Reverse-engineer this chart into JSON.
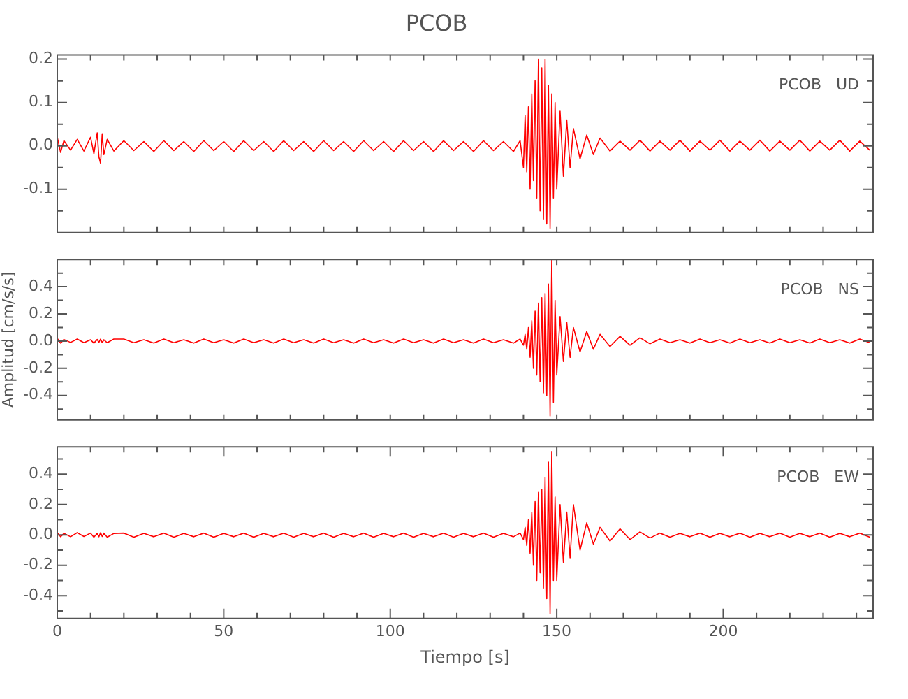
{
  "chart_data": [
    {
      "type": "line",
      "title": "PCOB",
      "annotations": [
        "PCOB   UD"
      ],
      "tick_labels": "y",
      "x": [
        0,
        1,
        2,
        4,
        6,
        8,
        10,
        11,
        12,
        12.5,
        13,
        13.5,
        14,
        15,
        17,
        20,
        23,
        26,
        29,
        32,
        35,
        38,
        41,
        44,
        47,
        50,
        53,
        56,
        59,
        62,
        65,
        68,
        71,
        74,
        77,
        80,
        83,
        86,
        89,
        92,
        95,
        98,
        101,
        104,
        107,
        110,
        113,
        116,
        119,
        122,
        125,
        128,
        131,
        134,
        137,
        139,
        140,
        140.5,
        141,
        141.5,
        142,
        142.5,
        143,
        143.5,
        144,
        144.5,
        145,
        145.5,
        146,
        146.5,
        147,
        147.5,
        148,
        148.5,
        149,
        149.5,
        150,
        151,
        152,
        153,
        154,
        155,
        157,
        159,
        161,
        163,
        166,
        169,
        172,
        175,
        178,
        181,
        184,
        187,
        190,
        193,
        196,
        199,
        202,
        205,
        208,
        211,
        214,
        217,
        220,
        223,
        226,
        229,
        232,
        235,
        238,
        241,
        244
      ],
      "series": [
        {
          "color": "#ff0000",
          "values": [
            0.02,
            -0.015,
            0.012,
            -0.01,
            0.015,
            -0.012,
            0.02,
            -0.018,
            0.03,
            -0.025,
            -0.04,
            0.028,
            -0.02,
            0.015,
            -0.012,
            0.012,
            -0.011,
            0.01,
            -0.013,
            0.012,
            -0.011,
            0.01,
            -0.013,
            0.012,
            -0.011,
            0.01,
            -0.013,
            0.012,
            -0.011,
            0.01,
            -0.013,
            0.012,
            -0.011,
            0.01,
            -0.013,
            0.012,
            -0.011,
            0.01,
            -0.013,
            0.012,
            -0.011,
            0.01,
            -0.013,
            0.012,
            -0.011,
            0.01,
            -0.013,
            0.012,
            -0.011,
            0.01,
            -0.013,
            0.012,
            -0.011,
            0.01,
            -0.013,
            0.012,
            -0.05,
            0.07,
            -0.06,
            0.09,
            -0.1,
            0.12,
            -0.08,
            0.15,
            -0.12,
            0.2,
            -0.15,
            0.18,
            -0.17,
            0.2,
            -0.18,
            0.14,
            -0.19,
            0.12,
            -0.12,
            0.1,
            -0.1,
            0.08,
            -0.07,
            0.06,
            -0.05,
            0.04,
            -0.03,
            0.025,
            -0.02,
            0.018,
            -0.012,
            0.011,
            -0.01,
            0.013,
            -0.012,
            0.011,
            -0.01,
            0.013,
            -0.012,
            0.011,
            -0.01,
            0.013,
            -0.012,
            0.011,
            -0.01,
            0.013,
            -0.012,
            0.011,
            -0.01,
            0.013,
            -0.012,
            0.011,
            -0.01,
            0.013,
            -0.012,
            0.011,
            -0.01
          ]
        }
      ],
      "xlim": [
        0,
        245
      ],
      "xticks": [
        {
          "value": 0,
          "label": null
        },
        {
          "value": 10,
          "label": null
        },
        {
          "value": 20,
          "label": null
        },
        {
          "value": 30,
          "label": null
        },
        {
          "value": 40,
          "label": null
        },
        {
          "value": 50,
          "label": null
        },
        {
          "value": 60,
          "label": null
        },
        {
          "value": 70,
          "label": null
        },
        {
          "value": 80,
          "label": null
        },
        {
          "value": 90,
          "label": null
        },
        {
          "value": 100,
          "label": null
        },
        {
          "value": 110,
          "label": null
        },
        {
          "value": 120,
          "label": null
        },
        {
          "value": 130,
          "label": null
        },
        {
          "value": 140,
          "label": null
        },
        {
          "value": 150,
          "label": null
        },
        {
          "value": 160,
          "label": null
        },
        {
          "value": 170,
          "label": null
        },
        {
          "value": 180,
          "label": null
        },
        {
          "value": 190,
          "label": null
        },
        {
          "value": 200,
          "label": null
        },
        {
          "value": 210,
          "label": null
        },
        {
          "value": 220,
          "label": null
        },
        {
          "value": 230,
          "label": null
        },
        {
          "value": 240,
          "label": null
        }
      ],
      "ylim": [
        -0.2,
        0.21
      ],
      "yticks": [
        {
          "value": -0.15,
          "label": null
        },
        {
          "value": -0.1,
          "label": "-0.1"
        },
        {
          "value": -0.05,
          "label": null
        },
        {
          "value": 0,
          "label": "0.0"
        },
        {
          "value": 0.05,
          "label": null
        },
        {
          "value": 0.1,
          "label": "0.1"
        },
        {
          "value": 0.15,
          "label": null
        },
        {
          "value": 0.2,
          "label": "0.2"
        }
      ]
    },
    {
      "type": "line",
      "ylabel": "Amplitud [cm/s/s]",
      "annotations": [
        "PCOB   NS"
      ],
      "tick_labels": "y",
      "x": [
        0,
        1,
        2,
        4,
        6,
        8,
        10,
        11,
        12,
        12.5,
        13,
        13.5,
        14,
        15,
        17,
        20,
        23,
        26,
        29,
        32,
        35,
        38,
        41,
        44,
        47,
        50,
        53,
        56,
        59,
        62,
        65,
        68,
        71,
        74,
        77,
        80,
        83,
        86,
        89,
        92,
        95,
        98,
        101,
        104,
        107,
        110,
        113,
        116,
        119,
        122,
        125,
        128,
        131,
        134,
        137,
        139,
        140,
        140.5,
        141,
        141.5,
        142,
        142.5,
        143,
        143.5,
        144,
        144.5,
        145,
        145.5,
        146,
        146.5,
        147,
        147.5,
        148,
        148.5,
        149,
        149.5,
        150,
        151,
        152,
        153,
        154,
        155,
        157,
        159,
        161,
        163,
        166,
        169,
        172,
        175,
        178,
        181,
        184,
        187,
        190,
        193,
        196,
        199,
        202,
        205,
        208,
        211,
        214,
        217,
        220,
        223,
        226,
        229,
        232,
        235,
        238,
        241,
        244
      ],
      "series": [
        {
          "color": "#ff0000",
          "values": [
            0.02,
            -0.015,
            0.012,
            -0.01,
            0.015,
            -0.012,
            0.01,
            -0.015,
            0.012,
            -0.01,
            0.015,
            -0.012,
            0.01,
            -0.012,
            0.015,
            0.015,
            -0.012,
            0.01,
            -0.015,
            0.015,
            -0.012,
            0.01,
            -0.015,
            0.015,
            -0.012,
            0.01,
            -0.015,
            0.015,
            -0.012,
            0.01,
            -0.015,
            0.015,
            -0.012,
            0.01,
            -0.015,
            0.015,
            -0.012,
            0.01,
            -0.015,
            0.015,
            -0.012,
            0.01,
            -0.015,
            0.015,
            -0.012,
            0.01,
            -0.015,
            0.015,
            -0.012,
            0.01,
            -0.015,
            0.015,
            -0.012,
            0.01,
            -0.015,
            0.015,
            -0.03,
            0.05,
            -0.06,
            0.1,
            -0.12,
            0.15,
            -0.2,
            0.22,
            -0.25,
            0.28,
            -0.3,
            0.32,
            -0.38,
            0.35,
            -0.4,
            0.42,
            -0.55,
            0.6,
            -0.45,
            0.3,
            -0.25,
            0.18,
            -0.15,
            0.14,
            -0.12,
            0.1,
            -0.08,
            0.07,
            -0.06,
            0.05,
            -0.04,
            0.035,
            -0.03,
            0.025,
            -0.02,
            0.015,
            -0.012,
            0.01,
            -0.015,
            0.015,
            -0.012,
            0.01,
            -0.015,
            0.015,
            -0.012,
            0.01,
            -0.015,
            0.015,
            -0.012,
            0.01,
            -0.015,
            0.015,
            -0.012,
            0.01,
            -0.015,
            0.015,
            -0.012
          ]
        }
      ],
      "xlim": [
        0,
        245
      ],
      "xticks": [
        {
          "value": 0,
          "label": null
        },
        {
          "value": 10,
          "label": null
        },
        {
          "value": 20,
          "label": null
        },
        {
          "value": 30,
          "label": null
        },
        {
          "value": 40,
          "label": null
        },
        {
          "value": 50,
          "label": null
        },
        {
          "value": 60,
          "label": null
        },
        {
          "value": 70,
          "label": null
        },
        {
          "value": 80,
          "label": null
        },
        {
          "value": 90,
          "label": null
        },
        {
          "value": 100,
          "label": null
        },
        {
          "value": 110,
          "label": null
        },
        {
          "value": 120,
          "label": null
        },
        {
          "value": 130,
          "label": null
        },
        {
          "value": 140,
          "label": null
        },
        {
          "value": 150,
          "label": null
        },
        {
          "value": 160,
          "label": null
        },
        {
          "value": 170,
          "label": null
        },
        {
          "value": 180,
          "label": null
        },
        {
          "value": 190,
          "label": null
        },
        {
          "value": 200,
          "label": null
        },
        {
          "value": 210,
          "label": null
        },
        {
          "value": 220,
          "label": null
        },
        {
          "value": 230,
          "label": null
        },
        {
          "value": 240,
          "label": null
        }
      ],
      "ylim": [
        -0.58,
        0.6
      ],
      "yticks": [
        {
          "value": -0.5,
          "label": null
        },
        {
          "value": -0.4,
          "label": "-0.4"
        },
        {
          "value": -0.3,
          "label": null
        },
        {
          "value": -0.2,
          "label": "-0.2"
        },
        {
          "value": -0.1,
          "label": null
        },
        {
          "value": 0,
          "label": "0.0"
        },
        {
          "value": 0.1,
          "label": null
        },
        {
          "value": 0.2,
          "label": "0.2"
        },
        {
          "value": 0.3,
          "label": null
        },
        {
          "value": 0.4,
          "label": "0.4"
        },
        {
          "value": 0.5,
          "label": null
        }
      ]
    },
    {
      "type": "line",
      "xlabel": "Tiempo [s]",
      "annotations": [
        "PCOB   EW"
      ],
      "x": [
        0,
        1,
        2,
        4,
        6,
        8,
        10,
        11,
        12,
        12.5,
        13,
        13.5,
        14,
        15,
        17,
        20,
        23,
        26,
        29,
        32,
        35,
        38,
        41,
        44,
        47,
        50,
        53,
        56,
        59,
        62,
        65,
        68,
        71,
        74,
        77,
        80,
        83,
        86,
        89,
        92,
        95,
        98,
        101,
        104,
        107,
        110,
        113,
        116,
        119,
        122,
        125,
        128,
        131,
        134,
        137,
        139,
        140,
        140.5,
        141,
        141.5,
        142,
        142.5,
        143,
        143.5,
        144,
        144.5,
        145,
        145.5,
        146,
        146.5,
        147,
        147.5,
        148,
        148.5,
        149,
        149.5,
        150,
        151,
        152,
        153,
        154,
        155,
        157,
        159,
        161,
        163,
        166,
        169,
        172,
        175,
        178,
        181,
        184,
        187,
        190,
        193,
        196,
        199,
        202,
        205,
        208,
        211,
        214,
        217,
        220,
        223,
        226,
        229,
        232,
        235,
        238,
        241,
        244
      ],
      "series": [
        {
          "color": "#ff0000",
          "values": [
            0.015,
            -0.012,
            0.01,
            -0.012,
            0.015,
            -0.01,
            0.012,
            -0.015,
            0.01,
            -0.012,
            0.015,
            -0.01,
            0.012,
            -0.015,
            0.01,
            0.012,
            -0.015,
            0.01,
            -0.012,
            0.012,
            -0.015,
            0.01,
            -0.012,
            0.012,
            -0.015,
            0.01,
            -0.012,
            0.012,
            -0.015,
            0.01,
            -0.012,
            0.012,
            -0.015,
            0.01,
            -0.012,
            0.012,
            -0.015,
            0.01,
            -0.012,
            0.012,
            -0.015,
            0.01,
            -0.012,
            0.012,
            -0.015,
            0.01,
            -0.012,
            0.012,
            -0.015,
            0.01,
            -0.012,
            0.012,
            -0.015,
            0.01,
            -0.012,
            0.012,
            -0.03,
            0.05,
            -0.07,
            0.1,
            -0.12,
            0.15,
            -0.2,
            0.22,
            -0.3,
            0.28,
            -0.25,
            0.3,
            -0.35,
            0.38,
            -0.42,
            0.48,
            -0.52,
            0.55,
            -0.3,
            0.25,
            -0.3,
            0.2,
            -0.18,
            0.15,
            -0.15,
            0.2,
            -0.1,
            0.08,
            -0.06,
            0.05,
            -0.04,
            0.04,
            -0.03,
            0.02,
            -0.02,
            0.012,
            -0.015,
            0.01,
            -0.012,
            0.012,
            -0.015,
            0.01,
            -0.012,
            0.012,
            -0.015,
            0.01,
            -0.012,
            0.012,
            -0.015,
            0.01,
            -0.012,
            0.012,
            -0.015,
            0.01,
            -0.012,
            0.012,
            -0.015
          ]
        }
      ],
      "xlim": [
        0,
        245
      ],
      "xticks": [
        {
          "value": 0,
          "label": "0"
        },
        {
          "value": 10,
          "label": null
        },
        {
          "value": 20,
          "label": null
        },
        {
          "value": 30,
          "label": null
        },
        {
          "value": 40,
          "label": null
        },
        {
          "value": 50,
          "label": "50"
        },
        {
          "value": 60,
          "label": null
        },
        {
          "value": 70,
          "label": null
        },
        {
          "value": 80,
          "label": null
        },
        {
          "value": 90,
          "label": null
        },
        {
          "value": 100,
          "label": "100"
        },
        {
          "value": 110,
          "label": null
        },
        {
          "value": 120,
          "label": null
        },
        {
          "value": 130,
          "label": null
        },
        {
          "value": 140,
          "label": null
        },
        {
          "value": 150,
          "label": "150"
        },
        {
          "value": 160,
          "label": null
        },
        {
          "value": 170,
          "label": null
        },
        {
          "value": 180,
          "label": null
        },
        {
          "value": 190,
          "label": null
        },
        {
          "value": 200,
          "label": "200"
        },
        {
          "value": 210,
          "label": null
        },
        {
          "value": 220,
          "label": null
        },
        {
          "value": 230,
          "label": null
        },
        {
          "value": 240,
          "label": null
        }
      ],
      "ylim": [
        -0.55,
        0.58
      ],
      "yticks": [
        {
          "value": -0.5,
          "label": null
        },
        {
          "value": -0.4,
          "label": "-0.4"
        },
        {
          "value": -0.3,
          "label": null
        },
        {
          "value": -0.2,
          "label": "-0.2"
        },
        {
          "value": -0.1,
          "label": null
        },
        {
          "value": 0,
          "label": "0.0"
        },
        {
          "value": 0.1,
          "label": null
        },
        {
          "value": 0.2,
          "label": "0.2"
        },
        {
          "value": 0.3,
          "label": null
        },
        {
          "value": 0.4,
          "label": "0.4"
        },
        {
          "value": 0.5,
          "label": null
        }
      ]
    }
  ]
}
